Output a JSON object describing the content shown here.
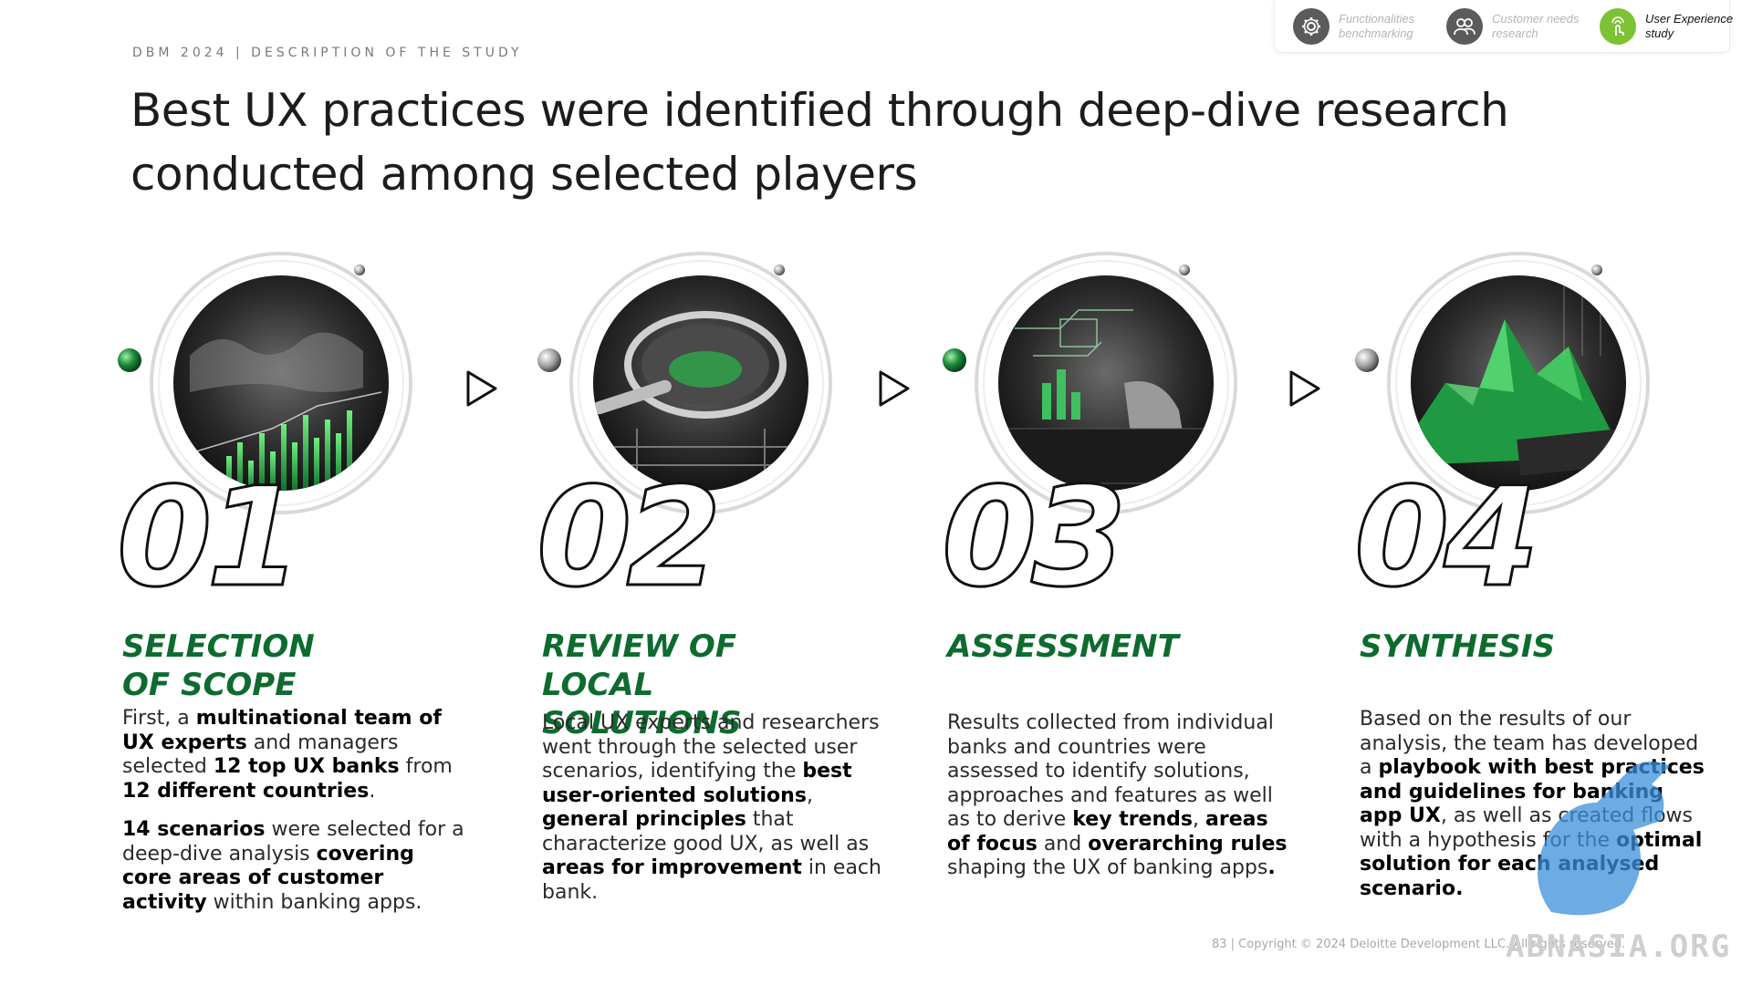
{
  "header": {
    "breadcrumb": "DBM 2024 | DESCRIPTION OF THE STUDY",
    "title": "Best UX practices were identified through deep-dive research conducted among selected players"
  },
  "stage_nav": {
    "items": [
      {
        "label": "Functionalities benchmarking",
        "icon": "gear-icon",
        "active": false
      },
      {
        "label": "Customer needs research",
        "icon": "people-icon",
        "active": false
      },
      {
        "label": "User Experience study",
        "icon": "touch-icon",
        "active": true
      }
    ]
  },
  "steps": [
    {
      "number": "01",
      "title": "SELECTION OF SCOPE",
      "paragraphs": [
        [
          {
            "t": "First, a ",
            "b": false
          },
          {
            "t": "multinational team of UX experts",
            "b": true
          },
          {
            "t": " and managers selected ",
            "b": false
          },
          {
            "t": "12 top UX banks",
            "b": true
          },
          {
            "t": " from ",
            "b": false
          },
          {
            "t": "12 different countries",
            "b": true
          },
          {
            "t": ".",
            "b": false
          }
        ],
        [
          {
            "t": "14 scenarios",
            "b": true
          },
          {
            "t": " were selected for a deep-dive analysis ",
            "b": false
          },
          {
            "t": "covering core areas of customer activity",
            "b": true
          },
          {
            "t": " within banking apps.",
            "b": false
          }
        ]
      ]
    },
    {
      "number": "02",
      "title": "REVIEW OF LOCAL SOLUTIONS",
      "paragraphs": [
        [
          {
            "t": "Local UX experts and researchers went through the selected user scenarios, identifying the ",
            "b": false
          },
          {
            "t": "best user-oriented solutions",
            "b": true
          },
          {
            "t": ", ",
            "b": false
          },
          {
            "t": "general principles",
            "b": true
          },
          {
            "t": " that characterize good UX, as well as ",
            "b": false
          },
          {
            "t": "areas for improvement",
            "b": true
          },
          {
            "t": " in each bank.",
            "b": false
          }
        ]
      ]
    },
    {
      "number": "03",
      "title": "ASSESSMENT",
      "paragraphs": [
        [
          {
            "t": "Results collected from individual banks and countries were assessed to identify solutions, approaches and features as well as to derive ",
            "b": false
          },
          {
            "t": "key trends",
            "b": true
          },
          {
            "t": ", ",
            "b": false
          },
          {
            "t": "areas of focus",
            "b": true
          },
          {
            "t": " and ",
            "b": false
          },
          {
            "t": "overarching rules",
            "b": true
          },
          {
            "t": " shaping the UX of banking apps",
            "b": false
          },
          {
            "t": ".",
            "b": true
          }
        ]
      ]
    },
    {
      "number": "04",
      "title": "SYNTHESIS",
      "paragraphs": [
        [
          {
            "t": "Based on the results of our analysis, the team has developed a ",
            "b": false
          },
          {
            "t": "playbook with best practices and guidelines for banking app UX",
            "b": true
          },
          {
            "t": ", as well as created flows with a hypothesis for the ",
            "b": false
          },
          {
            "t": "optimal solution for each analysed scenario.",
            "b": true
          }
        ]
      ]
    }
  ],
  "footer": {
    "text": "83 | Copyright © 2024 Deloitte Development LLC. All rights reserved."
  },
  "watermark": "ABNASIA.ORG",
  "colors": {
    "accent_green": "#0e6b2f",
    "bright_green": "#7cc234"
  }
}
